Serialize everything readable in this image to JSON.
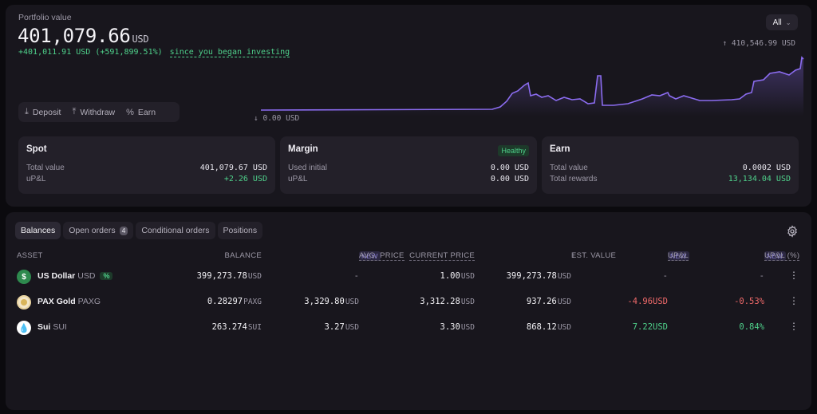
{
  "portfolio": {
    "label": "Portfolio value",
    "value": "401,079.66",
    "unit": "USD",
    "change_abs": "+401,011.91 USD",
    "change_pct": "(+591,899.51%)",
    "since": "since you began investing",
    "range": "All",
    "high": "410,546.99 USD",
    "low_value": "0.00",
    "low_unit": "USD"
  },
  "actions": {
    "deposit": "Deposit",
    "withdraw": "Withdraw",
    "earn": "Earn"
  },
  "cards": {
    "spot": {
      "title": "Spot",
      "r1_label": "Total value",
      "r1_value": "401,079.67 USD",
      "r2_label": "uP&L",
      "r2_value": "+2.26 USD"
    },
    "margin": {
      "title": "Margin",
      "badge": "Healthy",
      "r1_label": "Used initial",
      "r1_value": "0.00 USD",
      "r2_label": "uP&L",
      "r2_value": "0.00 USD"
    },
    "earn": {
      "title": "Earn",
      "r1_label": "Total value",
      "r1_value": "0.0002 USD",
      "r2_label": "Total rewards",
      "r2_value": "13,134.04 USD"
    }
  },
  "tabs": {
    "balances": "Balances",
    "open_orders": "Open orders",
    "open_orders_count": "4",
    "conditional": "Conditional orders",
    "positions": "Positions"
  },
  "table": {
    "headers": {
      "asset": "ASSET",
      "balance": "BALANCE",
      "new": "NEW",
      "avg_price": "AVG. PRICE",
      "current_price": "CURRENT PRICE",
      "est_value": "EST. VALUE",
      "upl": "UP&L",
      "upl_pct": "UP&L (%)"
    },
    "rows": [
      {
        "name": "US Dollar",
        "ticker": "USD",
        "badge": "%",
        "balance": "399,273.78",
        "balance_unit": "USD",
        "avg": "-",
        "avg_unit": "",
        "price": "1.00",
        "price_unit": "USD",
        "value": "399,273.78",
        "value_unit": "USD",
        "upl": "-",
        "upl_unit": "",
        "upl_pct": "-"
      },
      {
        "name": "PAX Gold",
        "ticker": "PAXG",
        "badge": "",
        "balance": "0.28297",
        "balance_unit": "PAXG",
        "avg": "3,329.80",
        "avg_unit": "USD",
        "price": "3,312.28",
        "price_unit": "USD",
        "value": "937.26",
        "value_unit": "USD",
        "upl": "-4.96",
        "upl_unit": "USD",
        "upl_pct": "-0.53%"
      },
      {
        "name": "Sui",
        "ticker": "SUI",
        "badge": "",
        "balance": "263.274",
        "balance_unit": "SUI",
        "avg": "3.27",
        "avg_unit": "USD",
        "price": "3.30",
        "price_unit": "USD",
        "value": "868.12",
        "value_unit": "USD",
        "upl": "7.22",
        "upl_unit": "USD",
        "upl_pct": "0.84%"
      }
    ]
  },
  "colors": {
    "accent_line": "#8b6cf0",
    "positive": "#4fd18b",
    "negative": "#f06a6a",
    "panel": "#18161d"
  },
  "icons": [
    "download-icon",
    "upload-icon",
    "percent-icon",
    "chevron-down-icon",
    "arrow-up-icon",
    "arrow-down-icon",
    "gear-icon",
    "kebab-icon"
  ]
}
